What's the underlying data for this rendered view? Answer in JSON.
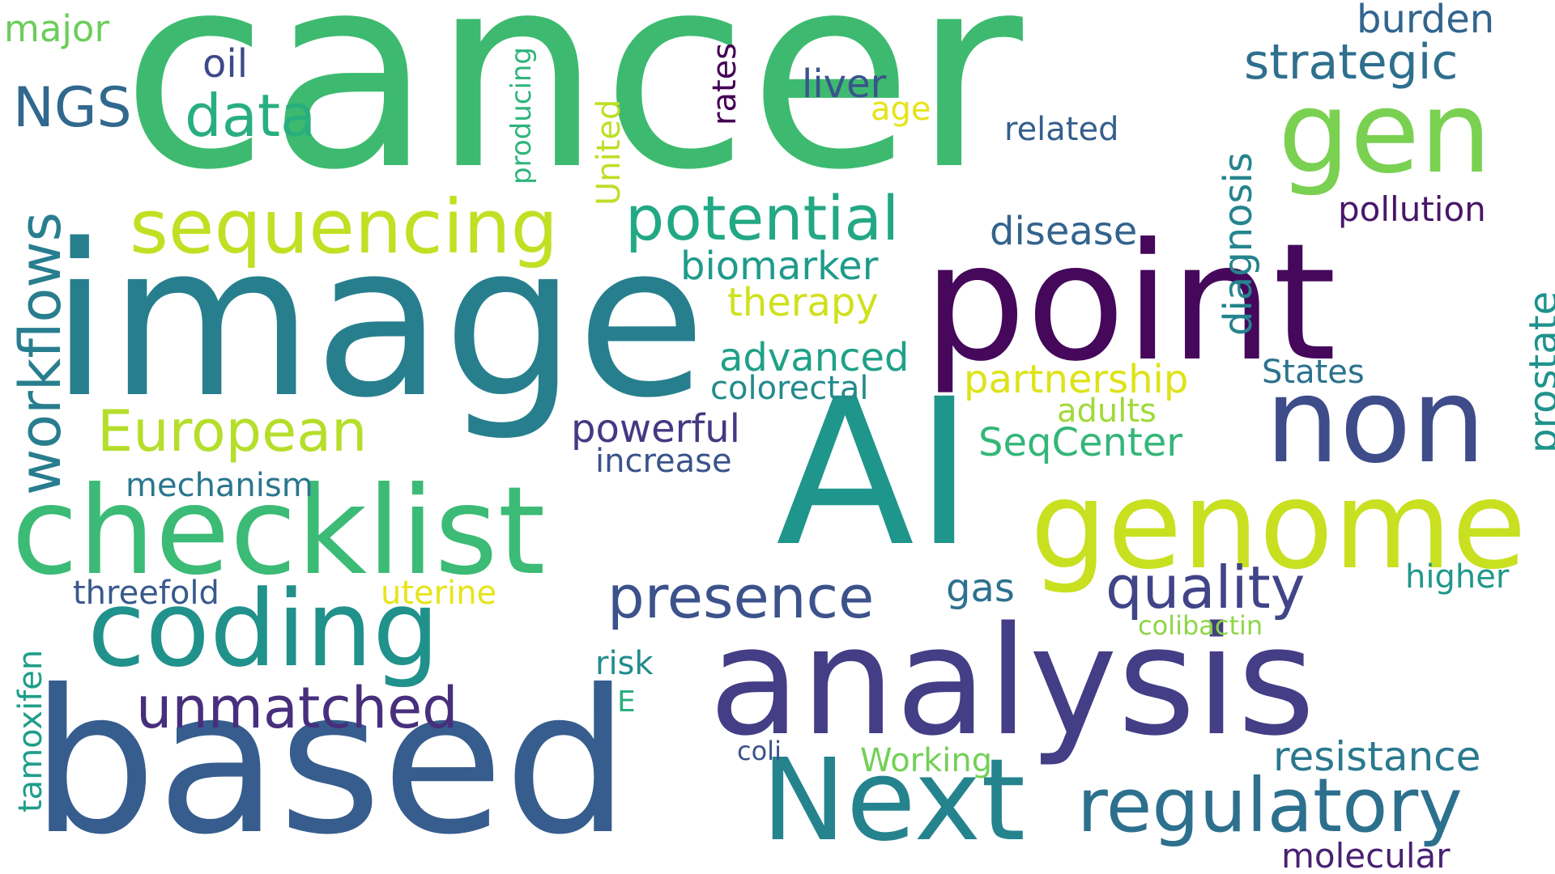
{
  "words": [
    {
      "key": "cancer",
      "text": "cancer",
      "color": "#3dba6f"
    },
    {
      "key": "image",
      "text": "image",
      "color": "#277f8e"
    },
    {
      "key": "point",
      "text": "point",
      "color": "#45085b"
    },
    {
      "key": "AI",
      "text": "AI",
      "color": "#1f968b"
    },
    {
      "key": "analysis",
      "text": "analysis",
      "color": "#433e85"
    },
    {
      "key": "based",
      "text": "based",
      "color": "#365d8d"
    },
    {
      "key": "checklist",
      "text": "checklist",
      "color": "#3bbb75"
    },
    {
      "key": "genome",
      "text": "genome",
      "color": "#c8e020"
    },
    {
      "key": "non",
      "text": "non",
      "color": "#3e4c8a"
    },
    {
      "key": "gen",
      "text": "gen",
      "color": "#7ad151"
    },
    {
      "key": "coding",
      "text": "coding",
      "color": "#21918c"
    },
    {
      "key": "Next",
      "text": "Next",
      "color": "#25838e"
    },
    {
      "key": "sequencing",
      "text": "sequencing",
      "color": "#c2df23"
    },
    {
      "key": "regulatory",
      "text": "regulatory",
      "color": "#2d708e"
    },
    {
      "key": "potential",
      "text": "potential",
      "color": "#22a884"
    },
    {
      "key": "presence",
      "text": "presence",
      "color": "#3b528b"
    },
    {
      "key": "unmatched",
      "text": "unmatched",
      "color": "#472f7d"
    },
    {
      "key": "European",
      "text": "European",
      "color": "#b5de2b"
    },
    {
      "key": "quality",
      "text": "quality",
      "color": "#414487"
    },
    {
      "key": "workflows",
      "text": "workflows",
      "color": "#287d8e"
    },
    {
      "key": "data",
      "text": "data",
      "color": "#29af7f"
    },
    {
      "key": "strategic",
      "text": "strategic",
      "color": "#2e6f8e"
    },
    {
      "key": "NGS",
      "text": "NGS",
      "color": "#31688e"
    },
    {
      "key": "resistance",
      "text": "resistance",
      "color": "#2a788e"
    },
    {
      "key": "advanced",
      "text": "advanced",
      "color": "#1fa187"
    },
    {
      "key": "therapy",
      "text": "therapy",
      "color": "#d0e11c"
    },
    {
      "key": "partnership",
      "text": "partnership",
      "color": "#dde318"
    },
    {
      "key": "powerful",
      "text": "powerful",
      "color": "#443983"
    },
    {
      "key": "SeqCenter",
      "text": "SeqCenter",
      "color": "#34b679"
    },
    {
      "key": "diagnosis",
      "text": "diagnosis",
      "color": "#25848e"
    },
    {
      "key": "disease",
      "text": "disease",
      "color": "#33638d"
    },
    {
      "key": "biomarker",
      "text": "biomarker",
      "color": "#1e9b8a"
    },
    {
      "key": "prostate",
      "text": "prostate",
      "color": "#20928c"
    },
    {
      "key": "pollution",
      "text": "pollution",
      "color": "#481668"
    },
    {
      "key": "liver",
      "text": "liver",
      "color": "#3a548c"
    },
    {
      "key": "burden",
      "text": "burden",
      "color": "#32648e"
    },
    {
      "key": "molecular",
      "text": "molecular",
      "color": "#482173"
    },
    {
      "key": "oil",
      "text": "oil",
      "color": "#3e4989"
    },
    {
      "key": "major",
      "text": "major",
      "color": "#6ccd5a"
    },
    {
      "key": "colorectal",
      "text": "colorectal",
      "color": "#238a8d"
    },
    {
      "key": "States",
      "text": "States",
      "color": "#2c728e"
    },
    {
      "key": "related",
      "text": "related",
      "color": "#355f8d"
    },
    {
      "key": "increase",
      "text": "increase",
      "color": "#3a538b"
    },
    {
      "key": "mechanism",
      "text": "mechanism",
      "color": "#2a768e"
    },
    {
      "key": "higher",
      "text": "higher",
      "color": "#1f988b"
    },
    {
      "key": "gas",
      "text": "gas",
      "color": "#2d718e"
    },
    {
      "key": "threefold",
      "text": "threefold",
      "color": "#38598c"
    },
    {
      "key": "tamoxifen",
      "text": "tamoxifen",
      "color": "#1f9e89"
    },
    {
      "key": "Working",
      "text": "Working",
      "color": "#73d056"
    },
    {
      "key": "adults",
      "text": "adults",
      "color": "#a0da39"
    },
    {
      "key": "risk",
      "text": "risk",
      "color": "#228c8d"
    },
    {
      "key": "rates",
      "text": "rates",
      "color": "#440154"
    },
    {
      "key": "United",
      "text": "United",
      "color": "#bddf26"
    },
    {
      "key": "producing",
      "text": "producing",
      "color": "#2fb47c"
    },
    {
      "key": "uterine",
      "text": "uterine",
      "color": "#e7e419"
    },
    {
      "key": "colibactin",
      "text": "colibactin",
      "color": "#8ed645"
    },
    {
      "key": "age",
      "text": "age",
      "color": "#e5e419"
    },
    {
      "key": "coli",
      "text": "coli",
      "color": "#3b528b"
    },
    {
      "key": "E",
      "text": "E",
      "color": "#2ab07f"
    }
  ]
}
